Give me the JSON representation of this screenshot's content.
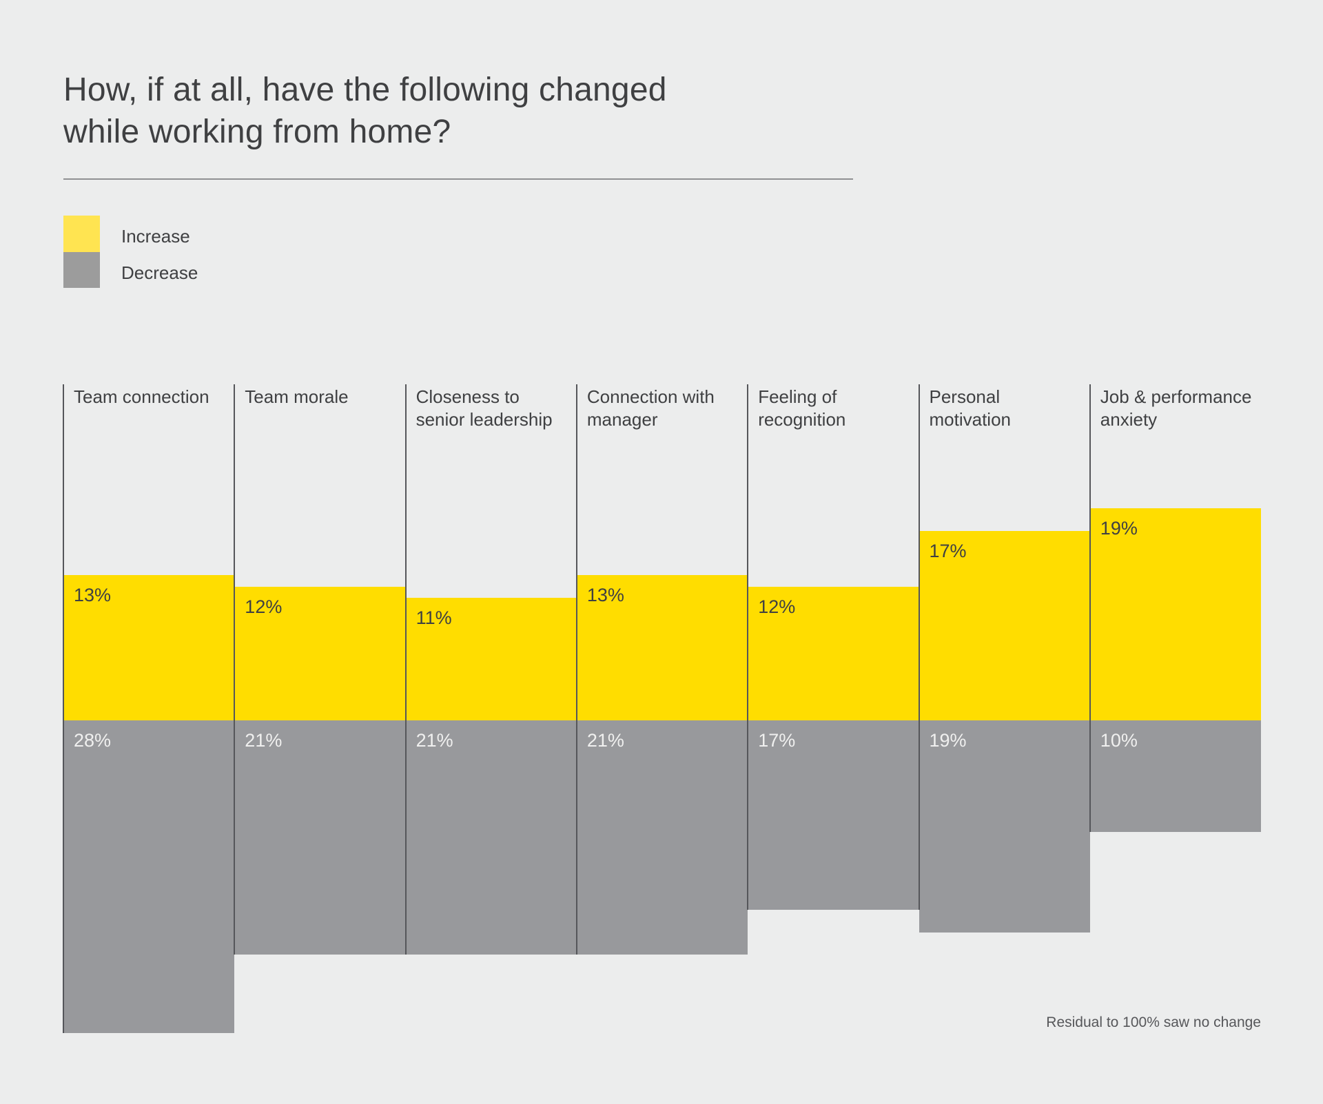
{
  "page": {
    "background_color": "#ECEDED"
  },
  "header": {
    "title_line1": "How, if at all, have the following changed",
    "title_line2": "while working from home?"
  },
  "legend": {
    "items": [
      {
        "label": "Increase",
        "color": "#FFE451"
      },
      {
        "label": "Decrease",
        "color": "#9C9C9C"
      }
    ]
  },
  "chart_data": {
    "type": "bar",
    "subtype": "diverging-columns",
    "title": "How, if at all, have the following changed while working from home?",
    "categories": [
      "Team connection",
      "Team morale",
      "Closeness to senior leadership",
      "Connection with manager",
      "Feeling of recognition",
      "Personal motivation",
      "Job & performance anxiety"
    ],
    "series": [
      {
        "name": "Increase",
        "values": [
          13,
          12,
          11,
          13,
          12,
          17,
          19
        ]
      },
      {
        "name": "Decrease",
        "values": [
          28,
          21,
          21,
          21,
          17,
          19,
          10
        ]
      }
    ],
    "value_suffix": "%",
    "colors": {
      "increase_bar": "#FFDD00",
      "decrease_bar": "#98999C",
      "divider_line": "#55565A",
      "increase_value_text": "#3F4042",
      "decrease_value_text": "#F0F0EF"
    },
    "legend_position": "top-left",
    "grid": false,
    "note": "Residual to 100% saw no change"
  },
  "footer": {
    "note": "Residual to 100% saw no change"
  }
}
